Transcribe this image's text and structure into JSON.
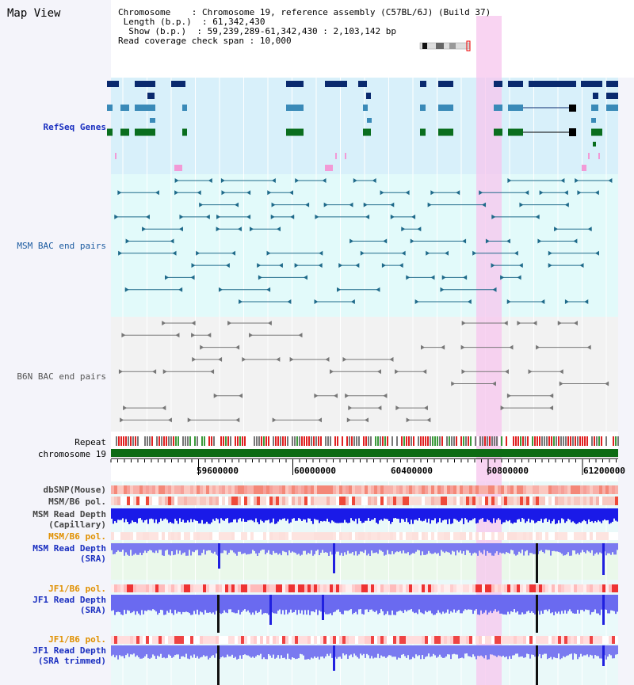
{
  "view": {
    "title": "Map View",
    "header": {
      "chromosome_key": "Chromosome",
      "chromosome_value": "Chromosome 19, reference assembly (C57BL/6J) (Build 37)",
      "length_key": "Length (b.p.)",
      "length_value": "61,342,430",
      "show_key": "Show (b.p.)",
      "show_value": "59,239,289-61,342,430 : 2,103,142 bp",
      "coverage_key": "Read coverage check span",
      "coverage_value": "10,000"
    }
  },
  "tracks": {
    "refseq": "RefSeq Genes",
    "msm_bac": "MSM BAC end pairs",
    "b6n_bac": "B6N BAC end pairs",
    "repeat": "Repeat",
    "chromosome": "chromosome 19",
    "dbsnp": "dbSNP(Mouse)",
    "msm_b6_pol": "MSM/B6 pol.",
    "msm_depth_cap_1": "MSM Read Depth",
    "msm_depth_cap_2": "(Capillary)",
    "msm_b6_pol_2": "MSM/B6 pol.",
    "msm_depth_sra_1": "MSM Read Depth",
    "msm_depth_sra_2": "(SRA)",
    "jf1_b6_pol": "JF1/B6 pol.",
    "jf1_depth_sra_1": "JF1 Read Depth",
    "jf1_depth_sra_2": "(SRA)",
    "jf1_b6_pol_2": "JF1/B6 pol.",
    "jf1_depth_trim_1": "JF1 Read Depth",
    "jf1_depth_trim_2": "(SRA trimmed)"
  },
  "axis": {
    "ticks": [
      "59600000",
      "60000000",
      "60400000",
      "60800000",
      "61200000"
    ]
  },
  "colors": {
    "highlight": "#f7c6ee",
    "refseq_bg": "#d8f0fa",
    "msm_bg": "#e2fafa",
    "b6n_bg": "#f2f2f2",
    "navy": "#0a2a6e",
    "teal": "#3a8ab8",
    "green": "#0a6e1e",
    "chrom": "#0d6b14",
    "depth": "#6a6af0"
  }
}
